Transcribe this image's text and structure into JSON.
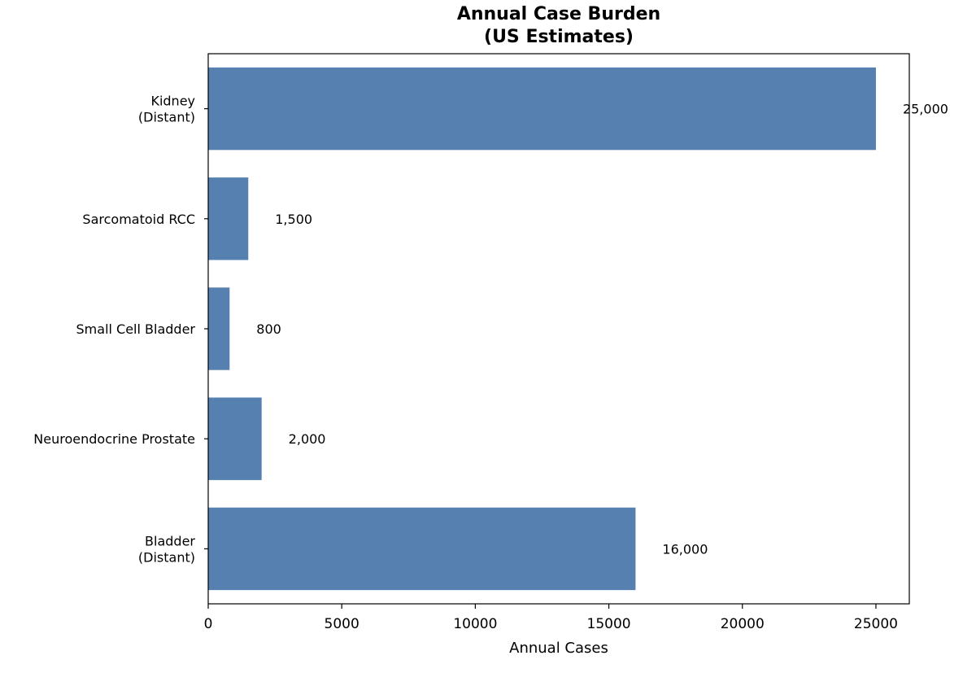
{
  "chart_data": {
    "type": "bar",
    "orientation": "horizontal",
    "title_lines": [
      "Annual Case Burden",
      "(US Estimates)"
    ],
    "xlabel": "Annual Cases",
    "ylabel": "",
    "categories": [
      [
        "Kidney",
        "(Distant)"
      ],
      [
        "Sarcomatoid RCC"
      ],
      [
        "Small Cell Bladder"
      ],
      [
        "Neuroendocrine Prostate"
      ],
      [
        "Bladder",
        "(Distant)"
      ]
    ],
    "values": [
      25000,
      1500,
      800,
      2000,
      16000
    ],
    "data_labels": [
      "25,000",
      "1,500",
      "800",
      "2,000",
      "16,000"
    ],
    "xticks": [
      0,
      5000,
      10000,
      15000,
      20000,
      25000
    ],
    "xtick_labels": [
      "0",
      "5000",
      "10000",
      "15000",
      "20000",
      "25000"
    ],
    "xlim": [
      0,
      26250
    ],
    "grid": false,
    "bar_color": "#5580b0"
  }
}
